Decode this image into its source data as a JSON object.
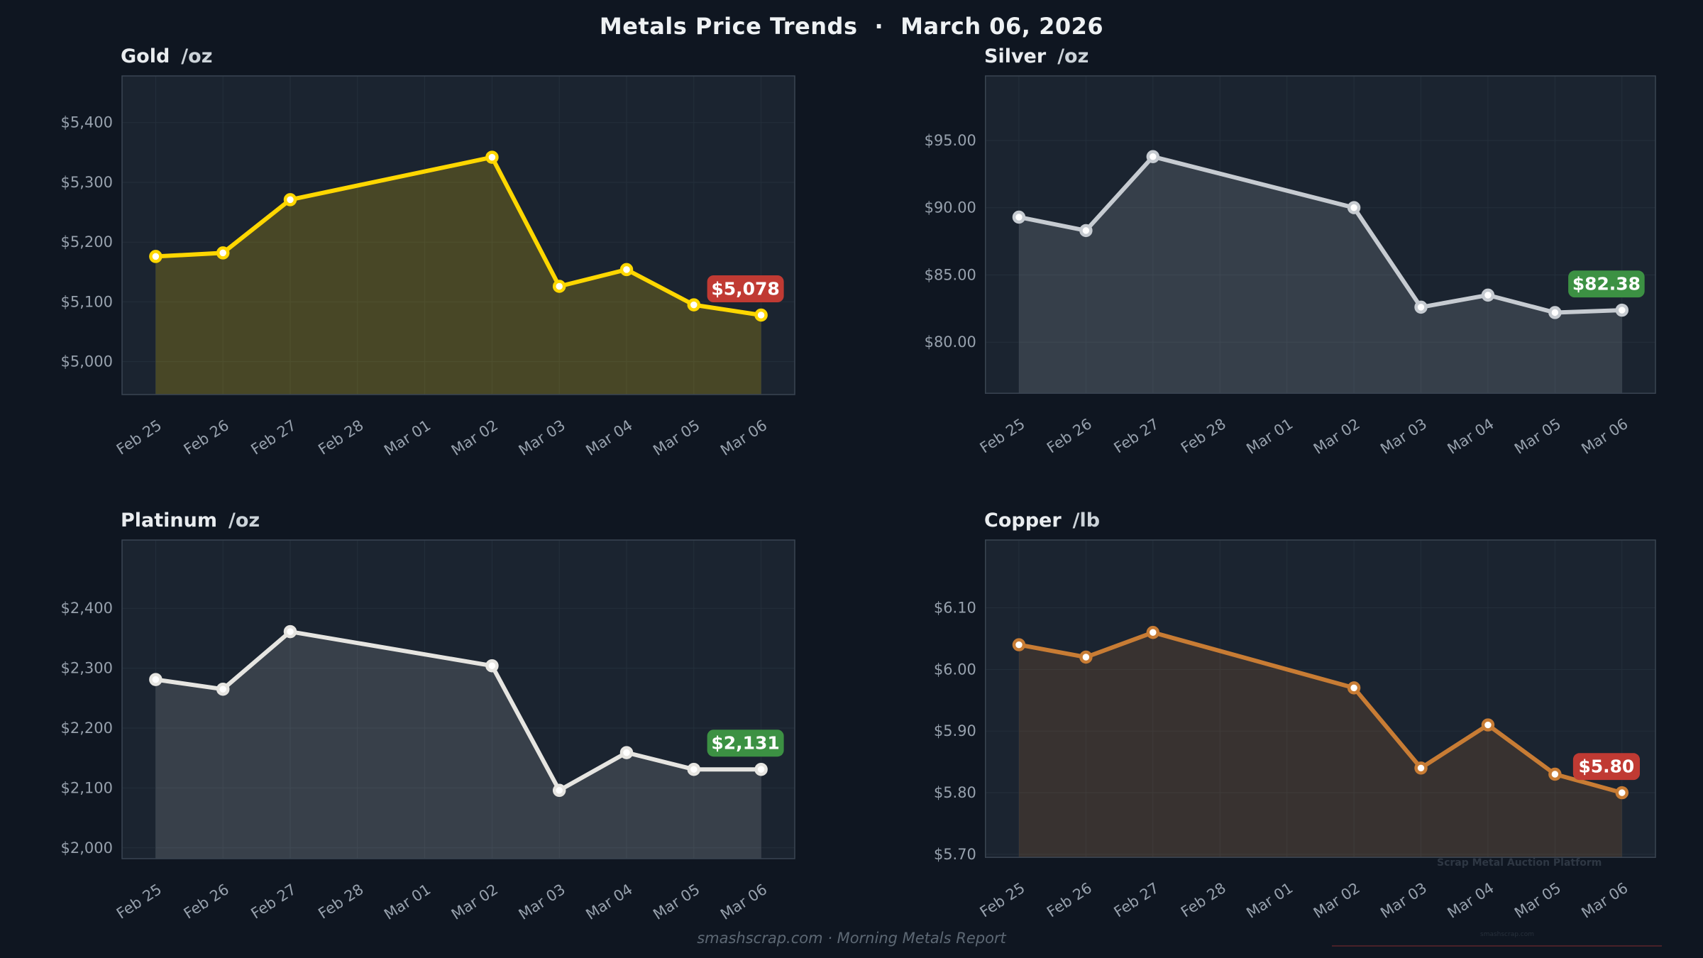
{
  "header": {
    "title": "Metals Price Trends",
    "separator": "·",
    "date": "March 06, 2026"
  },
  "footer": {
    "text": "smashscrap.com  ·  Morning Metals Report"
  },
  "watermarks": {
    "platform": "Scrap Metal Auction Platform",
    "site": "smashscrap.com"
  },
  "theme": {
    "page_bg": "#0f1621",
    "plot_bg": "#1b2430",
    "grid_color": "#242f3b",
    "plot_border": "#3a4552",
    "axis_text": "#97a1ad",
    "badge_text": "#ffffff",
    "marker_fill": "#ffffff",
    "badge_red": "#c03a33",
    "badge_green": "#3c9143"
  },
  "chart_data": [
    {
      "type": "line",
      "title": "Gold",
      "unit": "/oz",
      "categories": [
        "Feb 25",
        "Feb 26",
        "Feb 27",
        "Feb 28",
        "Mar 01",
        "Mar 02",
        "Mar 03",
        "Mar 04",
        "Mar 05",
        "Mar 06"
      ],
      "day_indices": [
        0,
        1,
        2,
        5,
        6,
        7,
        8,
        9
      ],
      "values": [
        5176,
        5182,
        5271,
        5342,
        5126,
        5154,
        5095,
        5078
      ],
      "ylim": [
        4945,
        5478
      ],
      "y_ticks": [
        5000,
        5100,
        5200,
        5300,
        5400
      ],
      "y_tick_labels": [
        "$5,000",
        "$5,100",
        "$5,200",
        "$5,300",
        "$5,400"
      ],
      "line_color": "#ffd700",
      "fill_color": "rgba(255,215,0,0.20)",
      "badge": {
        "label": "$5,078",
        "color": "#c03a33"
      },
      "grid": true,
      "legend": "none"
    },
    {
      "type": "line",
      "title": "Silver",
      "unit": "/oz",
      "categories": [
        "Feb 25",
        "Feb 26",
        "Feb 27",
        "Feb 28",
        "Mar 01",
        "Mar 02",
        "Mar 03",
        "Mar 04",
        "Mar 05",
        "Mar 06"
      ],
      "day_indices": [
        0,
        1,
        2,
        5,
        6,
        7,
        8,
        9
      ],
      "values": [
        89.3,
        88.3,
        93.8,
        90.0,
        82.6,
        83.5,
        82.2,
        82.38
      ],
      "ylim": [
        76.2,
        99.8
      ],
      "y_ticks": [
        80,
        85,
        90,
        95
      ],
      "y_tick_labels": [
        "$80.00",
        "$85.00",
        "$90.00",
        "$95.00"
      ],
      "line_color": "#c6cbd1",
      "fill_color": "rgba(198,203,209,0.16)",
      "badge": {
        "label": "$82.38",
        "color": "#3c9143"
      },
      "grid": true,
      "legend": "none"
    },
    {
      "type": "line",
      "title": "Platinum",
      "unit": "/oz",
      "categories": [
        "Feb 25",
        "Feb 26",
        "Feb 27",
        "Feb 28",
        "Mar 01",
        "Mar 02",
        "Mar 03",
        "Mar 04",
        "Mar 05",
        "Mar 06"
      ],
      "day_indices": [
        0,
        1,
        2,
        5,
        6,
        7,
        8,
        9
      ],
      "values": [
        2281,
        2265,
        2361,
        2304,
        2096,
        2159,
        2131,
        2131
      ],
      "ylim": [
        1982,
        2514
      ],
      "y_ticks": [
        2000,
        2100,
        2200,
        2300,
        2400
      ],
      "y_tick_labels": [
        "$2,000",
        "$2,100",
        "$2,200",
        "$2,300",
        "$2,400"
      ],
      "line_color": "#e6e5e1",
      "fill_color": "rgba(230,229,225,0.15)",
      "badge": {
        "label": "$2,131",
        "color": "#3c9143"
      },
      "grid": true,
      "legend": "none"
    },
    {
      "type": "line",
      "title": "Copper",
      "unit": "/lb",
      "categories": [
        "Feb 25",
        "Feb 26",
        "Feb 27",
        "Feb 28",
        "Mar 01",
        "Mar 02",
        "Mar 03",
        "Mar 04",
        "Mar 05",
        "Mar 06"
      ],
      "day_indices": [
        0,
        1,
        2,
        5,
        6,
        7,
        8,
        9
      ],
      "values": [
        6.04,
        6.02,
        6.06,
        5.97,
        5.84,
        5.91,
        5.83,
        5.8
      ],
      "ylim": [
        5.695,
        6.21
      ],
      "y_ticks": [
        5.7,
        5.8,
        5.9,
        6.0,
        6.1
      ],
      "y_tick_labels": [
        "$5.70",
        "$5.80",
        "$5.90",
        "$6.00",
        "$6.10"
      ],
      "line_color": "#c87c34",
      "fill_color": "rgba(200,124,52,0.17)",
      "badge": {
        "label": "$5.80",
        "color": "#c03a33"
      },
      "grid": true,
      "legend": "none"
    }
  ]
}
